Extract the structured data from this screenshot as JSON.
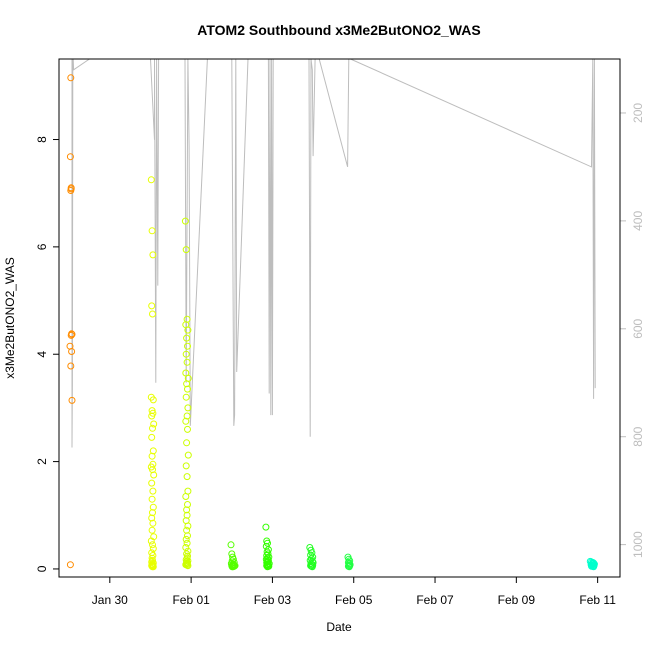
{
  "chart_data": {
    "type": "scatter",
    "title": "ATOM2 Southbound x3Me2ButONO2_WAS",
    "xlabel": "Date",
    "ylabel": "x3Me2ButONO2_WAS",
    "x_unit": "days",
    "x_ticks": [
      {
        "value": 1.0,
        "label": "Jan 30"
      },
      {
        "value": 3.0,
        "label": "Feb 01"
      },
      {
        "value": 5.0,
        "label": "Feb 03"
      },
      {
        "value": 7.0,
        "label": "Feb 05"
      },
      {
        "value": 9.0,
        "label": "Feb 07"
      },
      {
        "value": 11.0,
        "label": "Feb 09"
      },
      {
        "value": 13.0,
        "label": "Feb 11"
      }
    ],
    "xlim": [
      -0.25,
      13.55
    ],
    "ylim": [
      -0.15,
      9.5
    ],
    "y_ticks": [
      0,
      2,
      4,
      6,
      8
    ],
    "secondary_axis": {
      "label": "",
      "ticks": [
        200,
        400,
        600,
        800,
        1000
      ],
      "lim": [
        100,
        1060
      ],
      "inverted": true,
      "color": "#bdbdbd"
    },
    "grid": false,
    "legend": "none",
    "series": [
      {
        "color": "#ff8c00",
        "marker": "open-circle",
        "x": [
          0.04,
          0.03,
          0.05,
          0.04,
          0.06,
          0.07,
          0.05,
          0.02,
          0.06,
          0.04,
          0.07,
          0.03,
          0.05
        ],
        "y": [
          9.15,
          7.68,
          7.08,
          7.05,
          4.38,
          4.37,
          4.35,
          4.15,
          4.05,
          3.78,
          3.14,
          0.08,
          7.1
        ]
      },
      {
        "color": "#e8ff00",
        "marker": "open-circle",
        "x": [
          2.02,
          2.04,
          2.06,
          2.03,
          2.05,
          2.02,
          2.07,
          2.04,
          2.06,
          2.03,
          2.08,
          2.05,
          2.03,
          2.07,
          2.04,
          2.06,
          2.02,
          2.05,
          2.08,
          2.03,
          2.06,
          2.04,
          2.07,
          2.05,
          2.03,
          2.06,
          2.04,
          2.08,
          2.02,
          2.05,
          2.07,
          2.03,
          2.06,
          2.04,
          2.05,
          2.03,
          2.07,
          2.04,
          2.06,
          2.05,
          2.03,
          2.06,
          2.04,
          2.07,
          2.05
        ],
        "y": [
          7.25,
          6.3,
          5.85,
          4.9,
          4.75,
          3.2,
          3.15,
          2.95,
          2.9,
          2.85,
          2.7,
          2.62,
          2.45,
          2.2,
          2.1,
          1.95,
          1.9,
          1.85,
          1.75,
          1.6,
          1.45,
          1.3,
          1.15,
          1.05,
          0.95,
          0.85,
          0.72,
          0.6,
          0.52,
          0.45,
          0.38,
          0.3,
          0.25,
          0.2,
          0.16,
          0.13,
          0.11,
          0.09,
          0.08,
          0.07,
          0.06,
          0.05,
          0.05,
          0.04,
          0.04
        ]
      },
      {
        "color": "#ccff00",
        "marker": "open-circle",
        "x": [
          2.86,
          2.88,
          2.9,
          2.87,
          2.92,
          2.89,
          2.91,
          2.88,
          2.9,
          2.87,
          2.93,
          2.89,
          2.91,
          2.88,
          2.92,
          2.9,
          2.87,
          2.91,
          2.89,
          2.93,
          2.88,
          2.9,
          2.92,
          2.87,
          2.91,
          2.89,
          2.9,
          2.88,
          2.92,
          2.89,
          2.91,
          2.88,
          2.9,
          2.87,
          2.92,
          2.89,
          2.91,
          2.9,
          2.88,
          2.92,
          2.89,
          2.91,
          2.9,
          2.88,
          2.87,
          2.9,
          2.92
        ],
        "y": [
          6.48,
          5.95,
          4.65,
          4.55,
          4.45,
          4.3,
          4.15,
          4.0,
          3.85,
          3.65,
          3.55,
          3.45,
          3.35,
          3.2,
          3.0,
          2.85,
          2.75,
          2.6,
          2.35,
          2.12,
          1.92,
          1.72,
          1.45,
          1.35,
          1.2,
          1.1,
          1.0,
          0.9,
          0.8,
          0.72,
          0.62,
          0.55,
          0.48,
          0.4,
          0.33,
          0.28,
          0.24,
          0.2,
          0.17,
          0.15,
          0.13,
          0.11,
          0.1,
          0.09,
          0.08,
          0.07,
          0.06
        ]
      },
      {
        "color": "#55ff00",
        "marker": "open-circle",
        "x": [
          3.98,
          4.0,
          4.02,
          4.04,
          4.01,
          4.06,
          3.99,
          4.03,
          4.05,
          4.02,
          4.08,
          4.0,
          4.04,
          4.06,
          4.01,
          4.03
        ],
        "y": [
          0.45,
          0.28,
          0.22,
          0.18,
          0.15,
          0.12,
          0.1,
          0.09,
          0.08,
          0.07,
          0.06,
          0.06,
          0.05,
          0.05,
          0.04,
          0.04
        ]
      },
      {
        "color": "#33ff00",
        "marker": "open-circle",
        "x": [
          4.84,
          4.86,
          4.88,
          4.85,
          4.9,
          4.87,
          4.89,
          4.86,
          4.91,
          4.88,
          4.85,
          4.9,
          4.87,
          4.89,
          4.86,
          4.92,
          4.88,
          4.87,
          4.9,
          4.86,
          4.89,
          4.91,
          4.88
        ],
        "y": [
          0.78,
          0.52,
          0.48,
          0.42,
          0.36,
          0.32,
          0.28,
          0.25,
          0.22,
          0.2,
          0.18,
          0.16,
          0.14,
          0.13,
          0.12,
          0.1,
          0.09,
          0.08,
          0.07,
          0.06,
          0.05,
          0.05,
          0.04
        ]
      },
      {
        "color": "#22ff22",
        "marker": "open-circle",
        "x": [
          5.92,
          5.95,
          5.97,
          5.94,
          5.99,
          5.96,
          5.93,
          5.98,
          6.0,
          5.95,
          5.97,
          5.99,
          5.94,
          5.96,
          5.98
        ],
        "y": [
          0.4,
          0.35,
          0.3,
          0.26,
          0.22,
          0.19,
          0.16,
          0.14,
          0.12,
          0.1,
          0.08,
          0.07,
          0.06,
          0.05,
          0.04
        ]
      },
      {
        "color": "#22ff44",
        "marker": "open-circle",
        "x": [
          6.86,
          6.88,
          6.9,
          6.87,
          6.89,
          6.91,
          6.88,
          6.9,
          6.87,
          6.89
        ],
        "y": [
          0.22,
          0.18,
          0.15,
          0.12,
          0.1,
          0.08,
          0.07,
          0.06,
          0.05,
          0.04
        ]
      },
      {
        "color": "#00ffcc",
        "marker": "open-circle",
        "x": [
          12.82,
          12.85,
          12.88,
          12.9,
          12.87,
          12.92,
          12.84,
          12.89,
          12.86,
          12.91,
          12.88,
          12.85,
          12.9
        ],
        "y": [
          0.14,
          0.13,
          0.12,
          0.11,
          0.1,
          0.09,
          0.08,
          0.08,
          0.07,
          0.06,
          0.05,
          0.05,
          0.04
        ]
      }
    ],
    "overlay_line": {
      "color": "#bdbdbd",
      "axis": "secondary",
      "x": [
        0.07,
        0.07,
        0.08,
        0.09,
        0.1,
        0.11,
        0.5,
        1.5,
        2.0,
        2.1,
        2.1,
        2.13,
        2.15,
        2.15,
        2.18,
        2.2,
        2.2,
        2.95,
        2.85,
        2.88,
        2.92,
        2.95,
        2.98,
        3.4,
        4.0,
        4.05,
        4.07,
        4.1,
        4.12,
        4.4,
        4.9,
        4.92,
        4.94,
        4.96,
        4.98,
        5.0,
        5.02,
        5.9,
        5.93,
        5.95,
        5.98,
        6.0,
        6.05,
        6.1,
        6.15,
        6.85,
        6.88,
        6.9,
        6.92,
        12.85,
        12.88,
        12.9,
        12.92,
        12.94
      ],
      "y": [
        100,
        820,
        700,
        100,
        100,
        120,
        100,
        100,
        100,
        250,
        100,
        700,
        100,
        100,
        520,
        100,
        100,
        100,
        100,
        700,
        100,
        260,
        780,
        100,
        100,
        780,
        760,
        100,
        680,
        100,
        100,
        720,
        100,
        760,
        100,
        760,
        100,
        100,
        800,
        100,
        120,
        280,
        100,
        100,
        100,
        300,
        100,
        100,
        100,
        300,
        100,
        730,
        100,
        710
      ]
    }
  }
}
